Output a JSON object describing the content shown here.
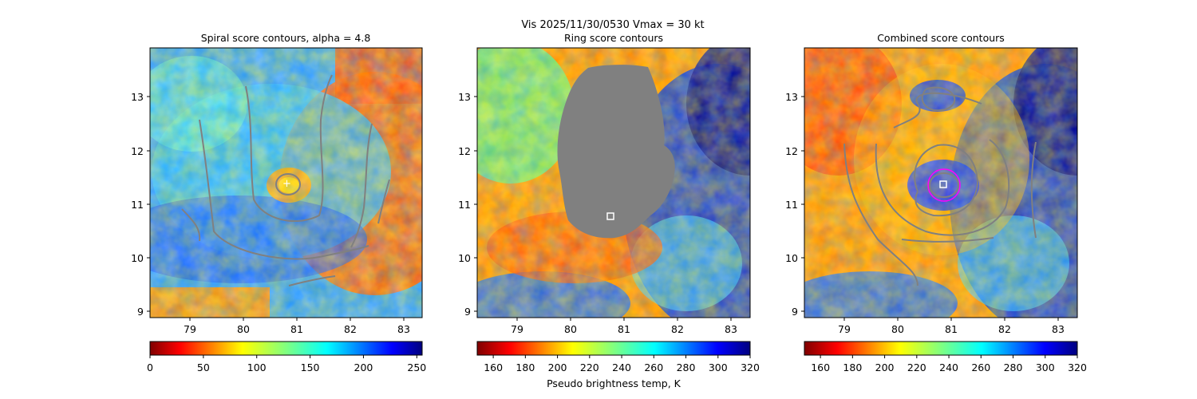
{
  "suptitle": "Vis  2025/11/30/0530    Vmax = 30 kt",
  "colorbar_label": "Pseudo brightness temp, K",
  "chart_data": [
    {
      "type": "heatmap",
      "title": "Spiral score contours, alpha =  4.8",
      "xlabel": "",
      "ylabel": "",
      "xlim": [
        78.3,
        83.35
      ],
      "ylim": [
        8.9,
        13.9
      ],
      "xticks": [
        "79",
        "80",
        "81",
        "82",
        "83"
      ],
      "yticks": [
        "9",
        "10",
        "11",
        "12",
        "13"
      ],
      "colormap": "jet_r",
      "colorbar": {
        "range": [
          0,
          255
        ],
        "ticks": [
          "0",
          "50",
          "100",
          "150",
          "200",
          "250"
        ]
      },
      "center_marker": {
        "symbol": "plus",
        "x": 80.85,
        "y": 11.38
      }
    },
    {
      "type": "heatmap",
      "title": "Ring score contours",
      "xlabel": "",
      "ylabel": "",
      "xlim": [
        78.3,
        83.35
      ],
      "ylim": [
        8.9,
        13.9
      ],
      "xticks": [
        "79",
        "80",
        "81",
        "82",
        "83"
      ],
      "yticks": [
        "9",
        "10",
        "11",
        "12",
        "13"
      ],
      "colormap": "jet_r",
      "colorbar": {
        "range": [
          150,
          320
        ],
        "ticks": [
          "160",
          "180",
          "200",
          "220",
          "240",
          "260",
          "280",
          "300",
          "320"
        ]
      },
      "masked_region": {
        "color": "#808080",
        "description_center_x": 81.0,
        "description_center_y": 12.0
      },
      "center_marker": {
        "symbol": "square",
        "x": 80.75,
        "y": 10.78
      }
    },
    {
      "type": "heatmap",
      "title": "Combined score contours",
      "xlabel": "",
      "ylabel": "",
      "xlim": [
        78.3,
        83.35
      ],
      "ylim": [
        8.9,
        13.9
      ],
      "xticks": [
        "79",
        "80",
        "81",
        "82",
        "83"
      ],
      "yticks": [
        "9",
        "10",
        "11",
        "12",
        "13"
      ],
      "colormap": "jet_r",
      "colorbar": {
        "range": [
          150,
          320
        ],
        "ticks": [
          "160",
          "180",
          "200",
          "220",
          "240",
          "260",
          "280",
          "300",
          "320"
        ]
      },
      "center_marker": {
        "symbol": "square",
        "x": 80.85,
        "y": 11.35
      },
      "highlight_circle": {
        "color": "#ff00ff",
        "x": 80.85,
        "y": 11.38
      }
    }
  ]
}
